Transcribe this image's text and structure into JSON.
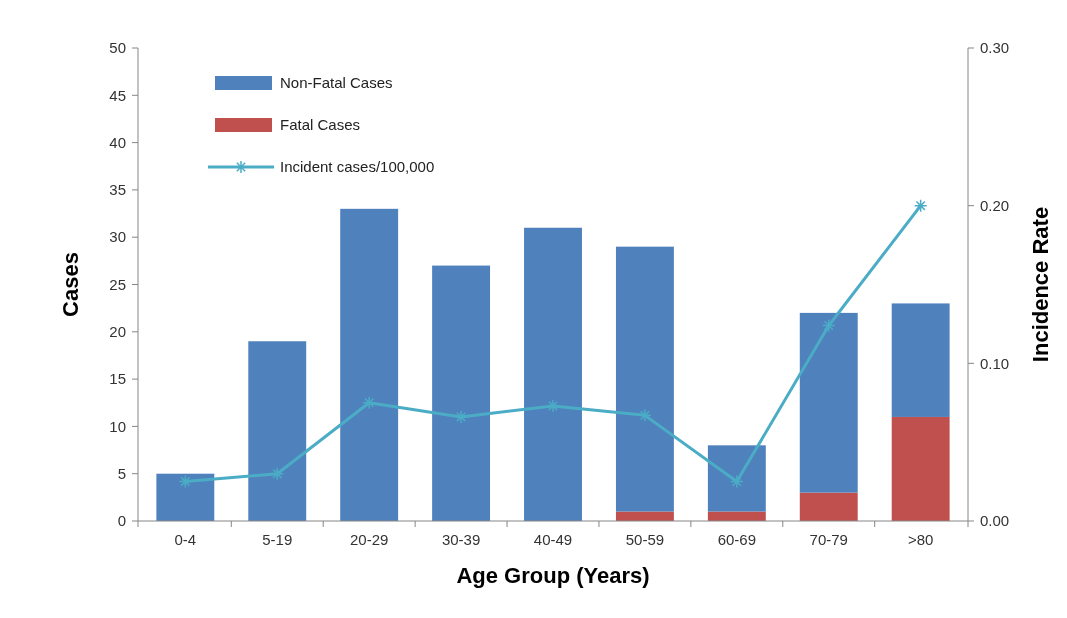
{
  "chart_data": {
    "type": "bar",
    "stacked": true,
    "xlabel": "Age Group (Years)",
    "ylabel": "Cases",
    "y2label": "Incidence Rate",
    "categories": [
      "0-4",
      "5-19",
      "20-29",
      "30-39",
      "40-49",
      "50-59",
      "60-69",
      "70-79",
      ">80"
    ],
    "series": [
      {
        "name": "Fatal Cases",
        "color": "#c0504d",
        "values": [
          0,
          0,
          0,
          0,
          0,
          1,
          1,
          3,
          11
        ]
      },
      {
        "name": "Non-Fatal Cases",
        "color": "#4f81bd",
        "values": [
          5,
          19,
          33,
          27,
          31,
          28,
          7,
          19,
          12
        ]
      },
      {
        "name": "Incident cases/100,000",
        "type": "line",
        "axis": "y2",
        "color": "#4bacc6",
        "marker": "cross",
        "values": [
          0.025,
          0.03,
          0.075,
          0.066,
          0.073,
          0.067,
          0.025,
          0.124,
          0.2
        ]
      }
    ],
    "ylim": [
      0,
      50
    ],
    "yticks": [
      0,
      5,
      10,
      15,
      20,
      25,
      30,
      35,
      40,
      45,
      50
    ],
    "y2lim": [
      0,
      0.3
    ],
    "y2ticks": [
      {
        "value": 0,
        "label": "0.00"
      },
      {
        "value": 0.1,
        "label": "0.10"
      },
      {
        "value": 0.2,
        "label": "0.20"
      },
      {
        "value": 0.3,
        "label": "0.30"
      }
    ],
    "grid": false,
    "legend": "top left"
  }
}
